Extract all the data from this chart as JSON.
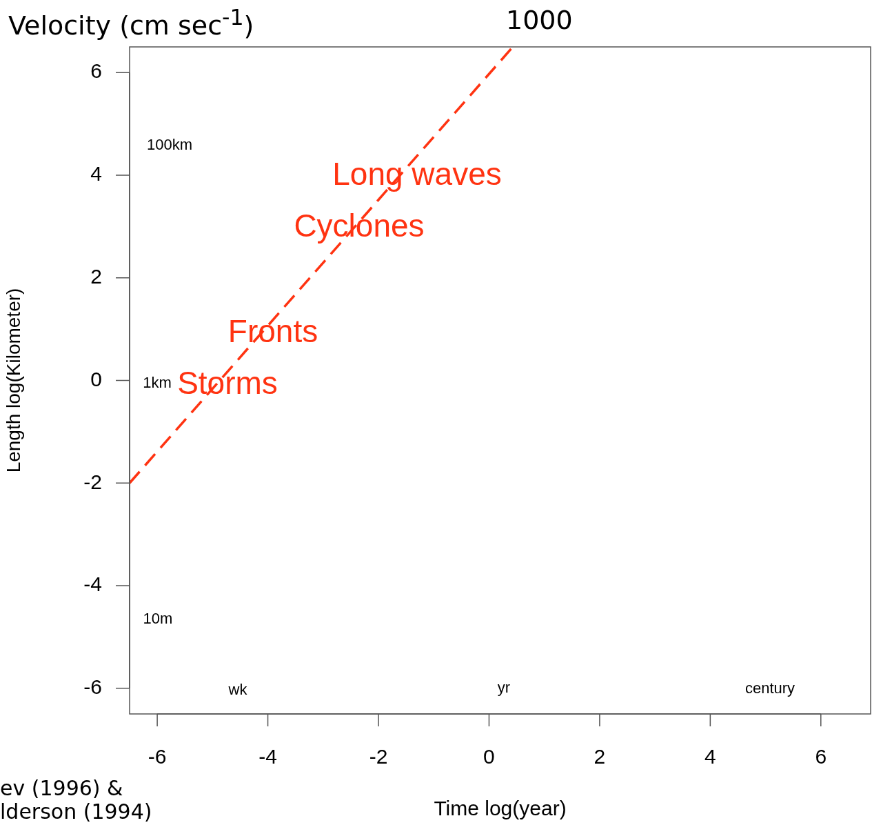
{
  "chart_data": {
    "type": "line",
    "xlabel": "Time log(year)",
    "ylabel": "Length log(Kilometer)",
    "xlim": [
      -6.5,
      6.9
    ],
    "ylim": [
      -6.5,
      6.5
    ],
    "xticks": [
      -6,
      -4,
      -2,
      0,
      2,
      4,
      6
    ],
    "yticks": [
      -6,
      -4,
      -2,
      0,
      2,
      4,
      6
    ],
    "grid": false,
    "legend": false,
    "marker": "none",
    "line_style": "dashed",
    "series": [
      {
        "color": "#ff3311",
        "x": [
          -6.5,
          0.43
        ],
        "values": [
          -2,
          6.5
        ]
      }
    ],
    "annotations": [
      "Velocity (cm sec$^{-1}$)",
      "1000",
      "ev (1996) &",
      "lderson (1994)",
      "100km",
      "1km",
      "10m",
      "wk",
      "yr",
      "century",
      "Long waves",
      "Cyclones",
      "Fronts",
      "Storms"
    ]
  }
}
